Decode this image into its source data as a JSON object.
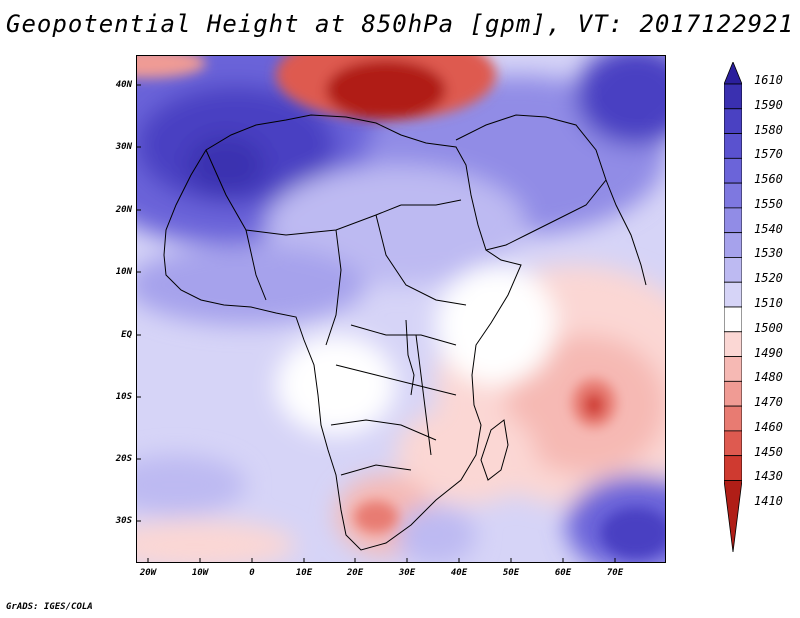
{
  "title": "Geopotential Height at 850hPa [gpm], VT: 2017122921",
  "credit": "GrADS: IGES/COLA",
  "lat_labels": [
    "40N",
    "30N",
    "20N",
    "10N",
    "EQ",
    "10S",
    "20S",
    "30S"
  ],
  "lon_labels": [
    "20W",
    "10W",
    "0",
    "10E",
    "20E",
    "30E",
    "40E",
    "50E",
    "60E",
    "70E"
  ],
  "colorbar": {
    "levels": [
      "1610",
      "1590",
      "1580",
      "1570",
      "1560",
      "1550",
      "1540",
      "1530",
      "1520",
      "1510",
      "1500",
      "1490",
      "1480",
      "1470",
      "1460",
      "1450",
      "1430",
      "1410"
    ],
    "colors": [
      "#2b1f9c",
      "#3a30b0",
      "#4a41c2",
      "#5a52cf",
      "#6b64d9",
      "#7e78e0",
      "#918ce6",
      "#a6a2ec",
      "#bdbaf2",
      "#d6d4f7",
      "#ffffff",
      "#fbd7d4",
      "#f6b9b4",
      "#f09b94",
      "#e87b72",
      "#de5a50",
      "#cf3a30",
      "#b01e17"
    ]
  }
}
